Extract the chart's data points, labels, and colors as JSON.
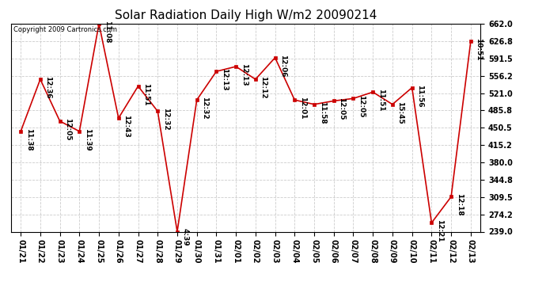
{
  "title": "Solar Radiation Daily High W/m2 20090214",
  "copyright": "Copyright 2009 Cartronics.com",
  "dates": [
    "01/21",
    "01/22",
    "01/23",
    "01/24",
    "01/25",
    "01/26",
    "01/27",
    "01/28",
    "01/29",
    "01/30",
    "01/31",
    "02/01",
    "02/02",
    "02/03",
    "02/04",
    "02/05",
    "02/06",
    "02/07",
    "02/08",
    "02/09",
    "02/10",
    "02/11",
    "02/12",
    "02/13"
  ],
  "values": [
    443,
    549,
    464,
    443,
    662,
    470,
    535,
    484,
    239,
    507,
    565,
    575,
    549,
    593,
    507,
    498,
    505,
    510,
    523,
    498,
    532,
    257,
    310,
    626
  ],
  "time_labels": [
    "11:38",
    "12:36",
    "12:05",
    "11:39",
    "11:08",
    "12:43",
    "11:51",
    "12:32",
    "4:39",
    "12:32",
    "12:13",
    "12:13",
    "12:12",
    "12:06",
    "12:01",
    "11:58",
    "12:05",
    "12:05",
    "11:51",
    "15:45",
    "11:56",
    "12:21",
    "12:18",
    "10:51"
  ],
  "line_color": "#cc0000",
  "marker_color": "#cc0000",
  "bg_color": "#ffffff",
  "grid_color": "#cccccc",
  "ymin": 239.0,
  "ymax": 662.0,
  "yticks": [
    239.0,
    274.2,
    309.5,
    344.8,
    380.0,
    415.2,
    450.5,
    485.8,
    521.0,
    556.2,
    591.5,
    626.8,
    662.0
  ],
  "title_fontsize": 11,
  "annotation_fontsize": 6.5,
  "copyright_fontsize": 6,
  "xtick_fontsize": 7,
  "ytick_fontsize": 7
}
